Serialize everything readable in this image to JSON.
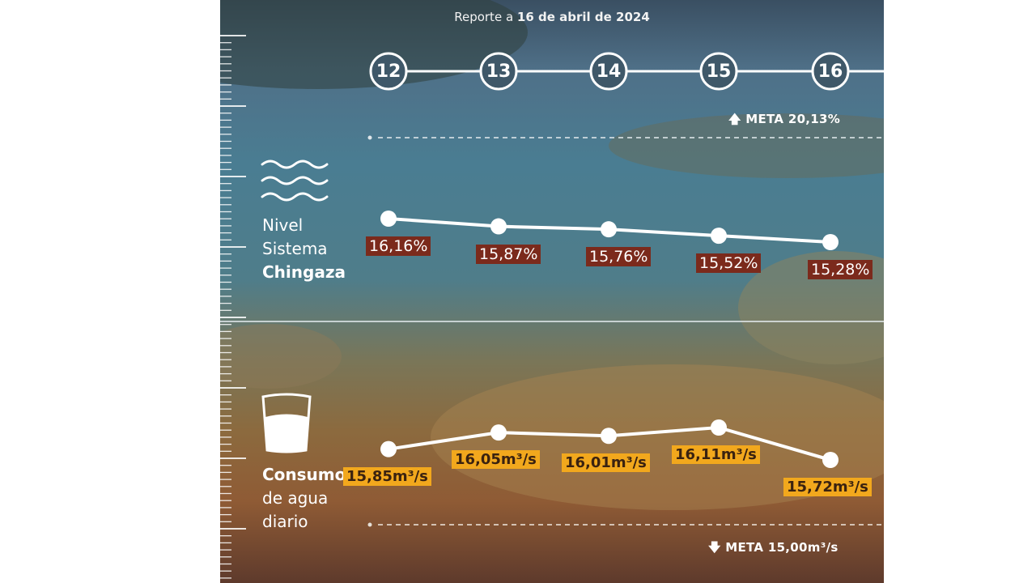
{
  "report": {
    "prefix": "Reporte a ",
    "date": "16 de abril de 2024"
  },
  "days": [
    "12",
    "13",
    "14",
    "15",
    "16"
  ],
  "meta_top": "META 20,13%",
  "meta_bottom": "META 15,00m³/s",
  "nivel_label": {
    "line1": "Nivel",
    "line2": "Sistema",
    "line3": "Chingaza"
  },
  "consumo_label": {
    "line1": "Consumo",
    "line2": "de agua",
    "line3": "diario"
  },
  "colors": {
    "pct_box": "#7b2a1c",
    "flow_box": "#f2a81d",
    "line": "#ffffff"
  },
  "icons": {
    "water": "water-waves-icon",
    "glass": "water-glass-icon",
    "up": "arrow-up-icon",
    "down": "arrow-down-icon"
  },
  "chart_data": [
    {
      "type": "line",
      "title": "Nivel Sistema Chingaza",
      "categories": [
        "12",
        "13",
        "14",
        "15",
        "16"
      ],
      "values": [
        16.16,
        15.87,
        15.76,
        15.52,
        15.28
      ],
      "labels": [
        "16,16%",
        "15,87%",
        "15,76%",
        "15,52%",
        "15,28%"
      ],
      "target": 20.13
    },
    {
      "type": "line",
      "title": "Consumo de agua diario",
      "categories": [
        "12",
        "13",
        "14",
        "15",
        "16"
      ],
      "values": [
        15.85,
        16.05,
        16.01,
        16.11,
        15.72
      ],
      "labels": [
        "15,85m³/s",
        "16,05m³/s",
        "16,01m³/s",
        "16,11m³/s",
        "15,72m³/s"
      ],
      "target": 15.0
    }
  ]
}
